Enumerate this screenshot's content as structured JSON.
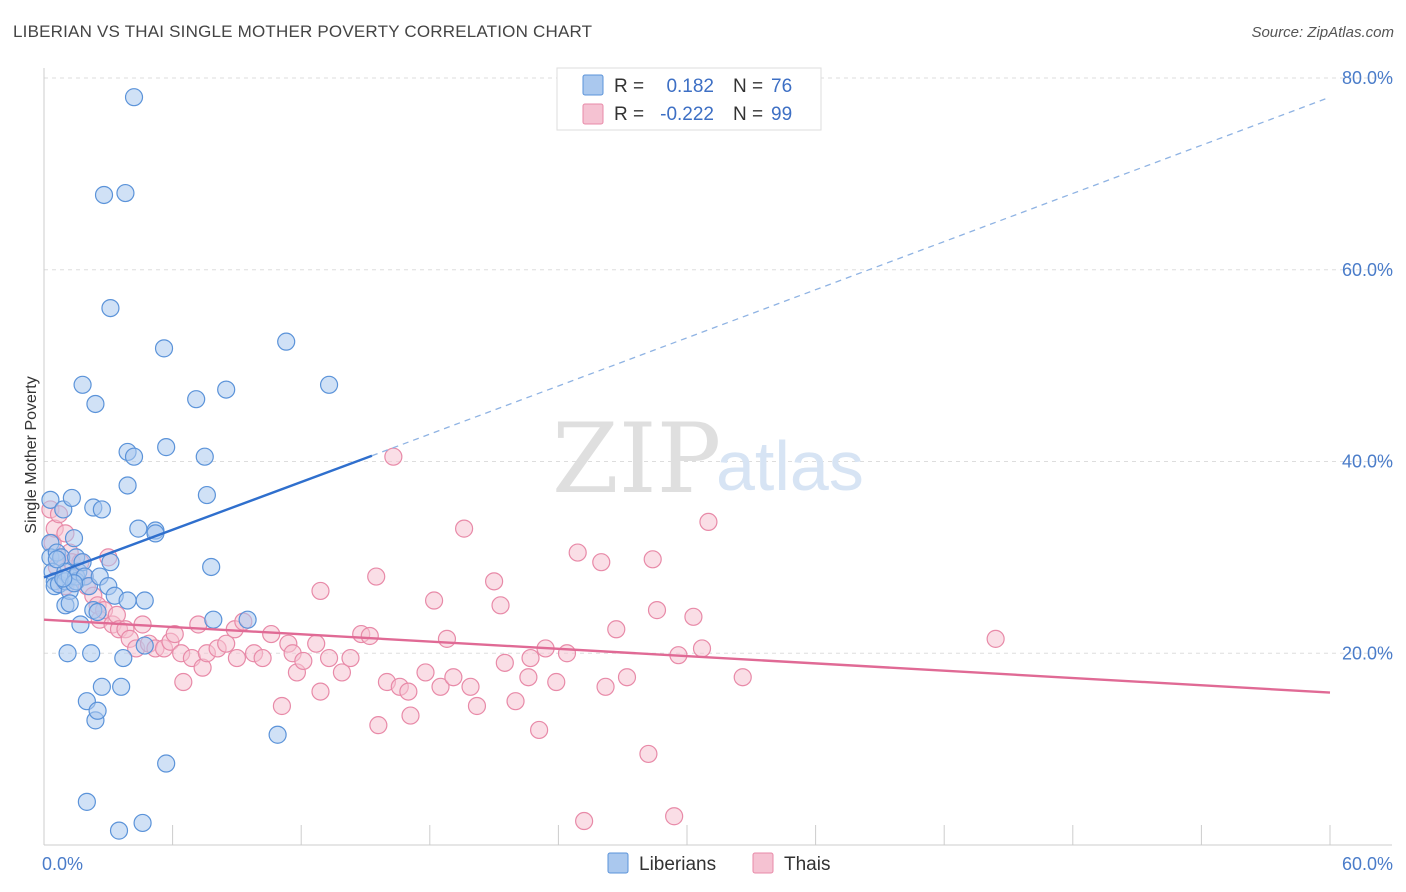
{
  "header": {
    "title": "LIBERIAN VS THAI SINGLE MOTHER POVERTY CORRELATION CHART",
    "source": "Source: ZipAtlas.com"
  },
  "watermark": {
    "zip": "ZIP",
    "atlas": "atlas"
  },
  "colors": {
    "liberians": "#5b93d9",
    "liberians_fill": "#aac8ee",
    "liberians_line": "#2f6fcd",
    "thais": "#e88aa8",
    "thais_fill": "#f5c2d2",
    "thais_line": "#e06a95",
    "grid": "#dddddd",
    "axis_text": "#4a7cc9"
  },
  "legend": {
    "rows": [
      {
        "r_label": "R =",
        "r_value": "0.182",
        "n_label": "N =",
        "n_value": "76"
      },
      {
        "r_label": "R =",
        "r_value": "-0.222",
        "n_label": "N =",
        "n_value": "99"
      }
    ]
  },
  "chart_data": {
    "type": "scatter",
    "title": "LIBERIAN VS THAI SINGLE MOTHER POVERTY CORRELATION CHART",
    "xlabel": "",
    "ylabel": "Single Mother Poverty",
    "xlim": [
      0,
      60
    ],
    "ylim": [
      0,
      80
    ],
    "x_tick_labels": [
      "0.0%",
      "60.0%"
    ],
    "y_tick_labels": [
      "20.0%",
      "40.0%",
      "60.0%",
      "80.0%"
    ],
    "y_ticks": [
      20,
      40,
      60,
      80
    ],
    "grid": true,
    "legend_position": "top-center",
    "series": [
      {
        "name": "Liberians",
        "r": 0.182,
        "n": 76,
        "trend": {
          "x": [
            0,
            15.3
          ],
          "y": [
            27.9,
            40.6
          ],
          "extended": {
            "x": [
              15.3,
              60
            ],
            "y": [
              40.6,
              78.0
            ]
          }
        },
        "points": [
          [
            0.3,
            36.0
          ],
          [
            0.3,
            31.5
          ],
          [
            0.3,
            30.0
          ],
          [
            0.4,
            28.5
          ],
          [
            0.5,
            27.5
          ],
          [
            0.5,
            27.0
          ],
          [
            0.6,
            30.5
          ],
          [
            0.7,
            27.2
          ],
          [
            0.8,
            30.0
          ],
          [
            0.9,
            35.0
          ],
          [
            1.0,
            28.5
          ],
          [
            1.0,
            27.5
          ],
          [
            1.0,
            25.0
          ],
          [
            1.1,
            20.0
          ],
          [
            1.2,
            26.5
          ],
          [
            1.2,
            28.0
          ],
          [
            1.2,
            25.2
          ],
          [
            1.3,
            36.2
          ],
          [
            1.4,
            32.0
          ],
          [
            1.5,
            30.0
          ],
          [
            1.5,
            28.0
          ],
          [
            1.5,
            27.5
          ],
          [
            1.6,
            28.5
          ],
          [
            1.7,
            23.0
          ],
          [
            1.8,
            48.0
          ],
          [
            1.8,
            29.5
          ],
          [
            1.9,
            28.0
          ],
          [
            2.0,
            4.5
          ],
          [
            2.0,
            15.0
          ],
          [
            2.1,
            27.0
          ],
          [
            2.2,
            20.0
          ],
          [
            2.3,
            35.2
          ],
          [
            2.3,
            24.5
          ],
          [
            2.4,
            13.0
          ],
          [
            2.4,
            46.0
          ],
          [
            2.5,
            14.0
          ],
          [
            2.5,
            24.3
          ],
          [
            2.6,
            28.0
          ],
          [
            2.7,
            35.0
          ],
          [
            2.7,
            16.5
          ],
          [
            2.8,
            67.8
          ],
          [
            3.0,
            27.0
          ],
          [
            3.1,
            56.0
          ],
          [
            3.1,
            29.5
          ],
          [
            3.3,
            26.0
          ],
          [
            3.5,
            1.5
          ],
          [
            3.6,
            16.5
          ],
          [
            3.7,
            19.5
          ],
          [
            3.8,
            68.0
          ],
          [
            3.9,
            41.0
          ],
          [
            3.9,
            37.5
          ],
          [
            3.9,
            25.5
          ],
          [
            4.2,
            78.0
          ],
          [
            4.2,
            40.5
          ],
          [
            4.4,
            33.0
          ],
          [
            4.6,
            2.3
          ],
          [
            4.7,
            25.5
          ],
          [
            4.7,
            20.8
          ],
          [
            5.2,
            32.8
          ],
          [
            5.2,
            32.5
          ],
          [
            5.6,
            51.8
          ],
          [
            5.7,
            41.5
          ],
          [
            5.7,
            8.5
          ],
          [
            7.1,
            46.5
          ],
          [
            7.5,
            40.5
          ],
          [
            7.6,
            36.5
          ],
          [
            7.8,
            29.0
          ],
          [
            7.9,
            23.5
          ],
          [
            8.5,
            47.5
          ],
          [
            9.5,
            23.5
          ],
          [
            10.9,
            11.5
          ],
          [
            11.3,
            52.5
          ],
          [
            13.3,
            48.0
          ],
          [
            0.6,
            29.8
          ],
          [
            1.4,
            27.3
          ],
          [
            0.9,
            27.8
          ]
        ]
      },
      {
        "name": "Thais",
        "r": -0.222,
        "n": 99,
        "trend": {
          "x": [
            0,
            60
          ],
          "y": [
            23.5,
            15.9
          ]
        },
        "points": [
          [
            0.3,
            35.0
          ],
          [
            0.4,
            31.5
          ],
          [
            0.5,
            33.0
          ],
          [
            0.6,
            29.0
          ],
          [
            0.7,
            34.5
          ],
          [
            0.8,
            30.0
          ],
          [
            1.0,
            32.5
          ],
          [
            1.0,
            27.0
          ],
          [
            1.2,
            30.5
          ],
          [
            1.3,
            29.5
          ],
          [
            1.5,
            28.0
          ],
          [
            1.7,
            29.5
          ],
          [
            1.9,
            28.0
          ],
          [
            2.0,
            27.0
          ],
          [
            2.3,
            26.0
          ],
          [
            2.5,
            25.0
          ],
          [
            2.6,
            23.5
          ],
          [
            2.8,
            24.5
          ],
          [
            3.0,
            30.0
          ],
          [
            3.2,
            23.0
          ],
          [
            3.4,
            24.0
          ],
          [
            3.5,
            22.5
          ],
          [
            3.8,
            22.5
          ],
          [
            4.0,
            21.5
          ],
          [
            4.3,
            20.5
          ],
          [
            4.6,
            23.0
          ],
          [
            4.9,
            21.0
          ],
          [
            5.2,
            20.5
          ],
          [
            5.6,
            20.5
          ],
          [
            5.9,
            21.2
          ],
          [
            6.1,
            22.0
          ],
          [
            6.4,
            20.0
          ],
          [
            6.5,
            17.0
          ],
          [
            6.9,
            19.5
          ],
          [
            7.2,
            23.0
          ],
          [
            7.4,
            18.5
          ],
          [
            7.6,
            20.0
          ],
          [
            8.1,
            20.5
          ],
          [
            8.5,
            21.0
          ],
          [
            8.9,
            22.5
          ],
          [
            9.0,
            19.5
          ],
          [
            9.3,
            23.3
          ],
          [
            9.8,
            20.0
          ],
          [
            10.2,
            19.5
          ],
          [
            10.6,
            22.0
          ],
          [
            11.1,
            14.5
          ],
          [
            11.4,
            21.0
          ],
          [
            11.6,
            20.0
          ],
          [
            11.8,
            18.0
          ],
          [
            12.1,
            19.2
          ],
          [
            12.7,
            21.0
          ],
          [
            12.9,
            26.5
          ],
          [
            12.9,
            16.0
          ],
          [
            13.3,
            19.5
          ],
          [
            13.9,
            18.0
          ],
          [
            14.3,
            19.5
          ],
          [
            14.8,
            22.0
          ],
          [
            15.2,
            21.8
          ],
          [
            15.5,
            28.0
          ],
          [
            15.6,
            12.5
          ],
          [
            16.0,
            17.0
          ],
          [
            16.3,
            40.5
          ],
          [
            16.6,
            16.5
          ],
          [
            17.0,
            16.0
          ],
          [
            17.1,
            13.5
          ],
          [
            17.8,
            18.0
          ],
          [
            18.2,
            25.5
          ],
          [
            18.5,
            16.5
          ],
          [
            18.8,
            21.5
          ],
          [
            19.1,
            17.5
          ],
          [
            19.6,
            33.0
          ],
          [
            19.9,
            16.5
          ],
          [
            20.2,
            14.5
          ],
          [
            21.0,
            27.5
          ],
          [
            21.3,
            25.0
          ],
          [
            21.5,
            19.0
          ],
          [
            22.0,
            15.0
          ],
          [
            22.6,
            17.5
          ],
          [
            22.7,
            19.5
          ],
          [
            23.1,
            12.0
          ],
          [
            23.4,
            20.5
          ],
          [
            23.9,
            17.0
          ],
          [
            24.4,
            20.0
          ],
          [
            24.9,
            30.5
          ],
          [
            25.2,
            2.5
          ],
          [
            26.0,
            29.5
          ],
          [
            26.2,
            16.5
          ],
          [
            26.7,
            22.5
          ],
          [
            27.2,
            17.5
          ],
          [
            28.2,
            9.5
          ],
          [
            28.4,
            29.8
          ],
          [
            28.6,
            24.5
          ],
          [
            29.4,
            3.0
          ],
          [
            29.6,
            19.8
          ],
          [
            30.3,
            23.8
          ],
          [
            30.7,
            20.5
          ],
          [
            31.0,
            33.7
          ],
          [
            32.6,
            17.5
          ],
          [
            44.4,
            21.5
          ]
        ]
      }
    ]
  }
}
